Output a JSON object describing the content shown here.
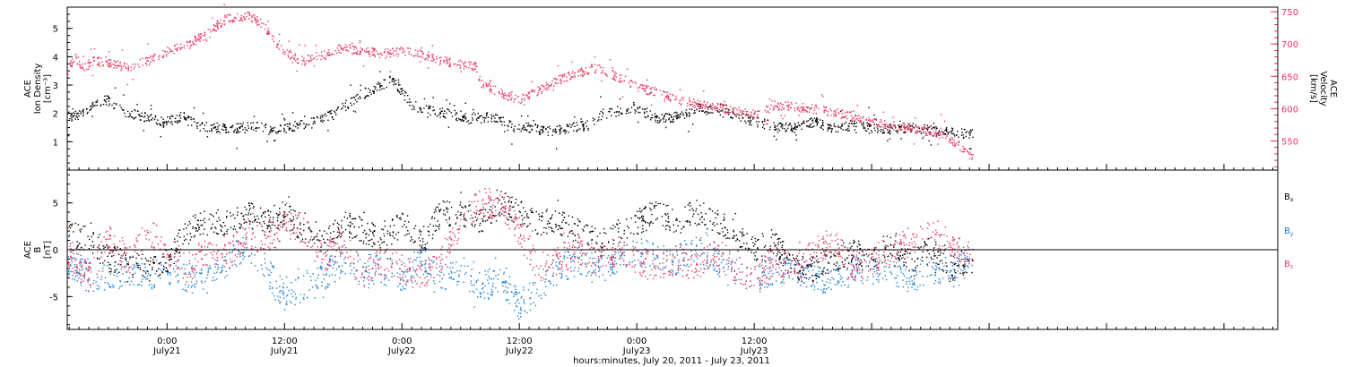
{
  "colors": {
    "black": "#000000",
    "pink": "#e8365f",
    "blue": "#1a7fd6"
  },
  "chart_data": [
    {
      "type": "scatter",
      "panel": "plasma",
      "ylabel_left": [
        "ACE",
        "Ion Density",
        "[cm⁻³]"
      ],
      "ylabel_right": [
        "ACE",
        "Velocity",
        "[km/s]"
      ],
      "ylim_left": [
        0,
        5.75
      ],
      "yticks_left": [
        1,
        2,
        3,
        4,
        5
      ],
      "ylim_right": [
        505,
        757
      ],
      "yticks_right": [
        550,
        600,
        650,
        700,
        750
      ],
      "series": [
        {
          "color": "#000000",
          "axis": "left",
          "x": [
            -10.2,
            -9,
            -8,
            -6.3,
            -4.5,
            -2.5,
            -0.5,
            1.5,
            3.5,
            5.5,
            7.5,
            9.5,
            11,
            12,
            13.5,
            15,
            17,
            19,
            21,
            23,
            25,
            27,
            29,
            31,
            33,
            35,
            37,
            39,
            41,
            43,
            44.5,
            46,
            48,
            50,
            52,
            54,
            56,
            58,
            60,
            62,
            64,
            66,
            68,
            70,
            72,
            74,
            76,
            78,
            80,
            82.3
          ],
          "values": [
            1.9,
            2.0,
            2.2,
            2.5,
            2.1,
            1.9,
            1.7,
            1.9,
            1.55,
            1.5,
            1.5,
            1.55,
            1.5,
            1.5,
            1.6,
            1.7,
            2.0,
            2.5,
            2.9,
            3.2,
            2.3,
            2.1,
            2.0,
            1.8,
            1.9,
            1.6,
            1.5,
            1.4,
            1.5,
            1.6,
            2.0,
            2.1,
            2.2,
            1.85,
            1.9,
            2.2,
            2.1,
            2.0,
            1.7,
            1.6,
            1.5,
            1.7,
            1.5,
            1.6,
            1.5,
            1.45,
            1.55,
            1.4,
            1.35,
            1.3
          ]
        },
        {
          "color": "#e8365f",
          "axis": "right",
          "x": [
            -10.2,
            -9.5,
            -8.5,
            -7.5,
            -6,
            -4,
            -2,
            0,
            2,
            4,
            6,
            8,
            9,
            10,
            11,
            12,
            13,
            14,
            16,
            18,
            20,
            22,
            24,
            26,
            28,
            30,
            31.5,
            32,
            34,
            36,
            38,
            40,
            42,
            44,
            46,
            48,
            50,
            52,
            54,
            56,
            58,
            60,
            62,
            64,
            66,
            68,
            70,
            72,
            74,
            76,
            78,
            79.5,
            80.5,
            81.5,
            82.3
          ],
          "values": [
            660,
            680,
            665,
            675,
            670,
            665,
            675,
            690,
            700,
            715,
            740,
            745,
            740,
            725,
            705,
            690,
            680,
            675,
            685,
            695,
            690,
            685,
            690,
            685,
            675,
            670,
            665,
            640,
            625,
            615,
            630,
            645,
            655,
            665,
            650,
            635,
            625,
            615,
            608,
            603,
            598,
            590,
            606,
            604,
            600,
            595,
            588,
            581,
            575,
            570,
            565,
            560,
            548,
            538,
            524
          ]
        }
      ]
    },
    {
      "type": "scatter",
      "panel": "magnetic_field",
      "ylabel": [
        "ACE",
        "B",
        "[nT]"
      ],
      "ylim": [
        -8.5,
        8.5
      ],
      "yticks": [
        -5,
        0,
        5
      ],
      "zero_line": true,
      "series": [
        {
          "name": "Bx",
          "color": "#000000",
          "x": [
            -10.2,
            -8,
            -6,
            -4,
            -2,
            0,
            2,
            4,
            6,
            8,
            10,
            12,
            14,
            16,
            18,
            20,
            22,
            24,
            26,
            28,
            30,
            32,
            34,
            36,
            38,
            40,
            42,
            44,
            46,
            48,
            50,
            52,
            54,
            56,
            58,
            60,
            62,
            64,
            66,
            68,
            70,
            72,
            74,
            76,
            78,
            80,
            82.3
          ],
          "values": [
            2,
            1,
            -1,
            -1,
            -2,
            -1,
            2,
            3,
            3,
            4,
            3,
            4,
            2,
            1,
            3,
            2,
            1,
            3,
            1,
            4,
            4,
            3,
            5,
            4,
            3,
            3,
            2,
            1,
            2,
            3,
            4,
            3,
            4,
            3,
            2,
            0,
            1,
            -2,
            -2,
            -1,
            0,
            -1,
            1,
            -1,
            0,
            -2,
            -1
          ]
        },
        {
          "name": "By",
          "color": "#1a7fd6",
          "x": [
            -10.2,
            -8,
            -6,
            -4,
            -2,
            0,
            2,
            4,
            6,
            8,
            10,
            12,
            14,
            16,
            18,
            20,
            22,
            24,
            26,
            28,
            30,
            32,
            34,
            36,
            38,
            40,
            42,
            44,
            46,
            48,
            50,
            52,
            54,
            56,
            58,
            60,
            62,
            64,
            66,
            68,
            70,
            72,
            74,
            76,
            78,
            80,
            82.3
          ],
          "values": [
            -1,
            -3,
            -3,
            -2,
            -3,
            -2,
            -3,
            -3,
            -2,
            1,
            -2,
            -5,
            -4,
            -3,
            -1,
            -2,
            -2,
            -3,
            -1,
            -3,
            -2,
            -4,
            -3,
            -6,
            -4,
            -2,
            -1,
            -2,
            -1,
            0,
            -1,
            -1,
            0,
            -1,
            -2,
            -3,
            -2,
            -2,
            -3,
            -3,
            -2,
            -2,
            -2,
            -3,
            -2,
            -2,
            -1
          ]
        },
        {
          "name": "Bz",
          "color": "#e8365f",
          "x": [
            -10.2,
            -8,
            -6,
            -4,
            -2,
            0,
            2,
            4,
            6,
            8,
            10,
            12,
            14,
            16,
            18,
            20,
            22,
            24,
            26,
            28,
            30,
            32,
            34,
            36,
            38,
            40,
            42,
            44,
            46,
            48,
            50,
            52,
            54,
            56,
            58,
            60,
            62,
            64,
            66,
            68,
            70,
            72,
            74,
            76,
            78,
            80,
            82.3
          ],
          "values": [
            0,
            -3,
            1,
            -1,
            2,
            0,
            -2,
            0,
            -1,
            2,
            1,
            3,
            2,
            -1,
            1,
            -3,
            -1,
            -2,
            -3,
            -1,
            3,
            5,
            5,
            2,
            -2,
            -1,
            0,
            -1,
            0,
            -1,
            -2,
            -1,
            -2,
            0,
            -2,
            -3,
            -1,
            -2,
            0,
            1,
            -2,
            -1,
            0,
            1,
            2,
            1,
            -1
          ]
        }
      ]
    }
  ],
  "legend": {
    "bx": "B",
    "bx_sub": "x",
    "by": "B",
    "by_sub": "y",
    "bz": "B",
    "bz_sub": "z"
  },
  "x_axis": {
    "range_hours": [
      -10.2,
      113.5
    ],
    "ticks": [
      {
        "h": 0,
        "time": "0:00",
        "day": "July21"
      },
      {
        "h": 12,
        "time": "12:00",
        "day": "July21"
      },
      {
        "h": 24,
        "time": "0:00",
        "day": "July22"
      },
      {
        "h": 36,
        "time": "12:00",
        "day": "July22"
      },
      {
        "h": 48,
        "time": "0:00",
        "day": "July23"
      },
      {
        "h": 60,
        "time": "12:00",
        "day": "July23"
      }
    ],
    "label": "hours:minutes, July 20, 2011 - July 23, 2011"
  }
}
